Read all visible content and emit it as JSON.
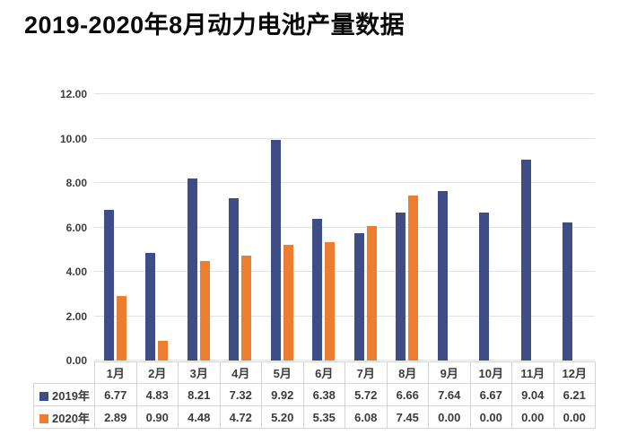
{
  "title": "2019-2020年8月动力电池产量数据",
  "chart_data": {
    "type": "bar",
    "title": "2019-2020年8月动力电池产量数据",
    "categories": [
      "1月",
      "2月",
      "3月",
      "4月",
      "5月",
      "6月",
      "7月",
      "8月",
      "9月",
      "10月",
      "11月",
      "12月"
    ],
    "series": [
      {
        "name": "2019年",
        "color": "#3f4d87",
        "values": [
          6.77,
          4.83,
          8.21,
          7.32,
          9.92,
          6.38,
          5.72,
          6.66,
          7.64,
          6.67,
          9.04,
          6.21
        ]
      },
      {
        "name": "2020年",
        "color": "#ed7d31",
        "values": [
          2.89,
          0.9,
          4.48,
          4.72,
          5.2,
          5.35,
          6.08,
          7.45,
          0.0,
          0.0,
          0.0,
          0.0
        ]
      }
    ],
    "ylim": [
      0,
      12
    ],
    "ytick_step": 2,
    "yticks": [
      "0.00",
      "2.00",
      "4.00",
      "6.00",
      "8.00",
      "10.00",
      "12.00"
    ],
    "xlabel": "",
    "ylabel": "",
    "grid": true,
    "legend_position": "data-table-left",
    "data_table": true
  }
}
